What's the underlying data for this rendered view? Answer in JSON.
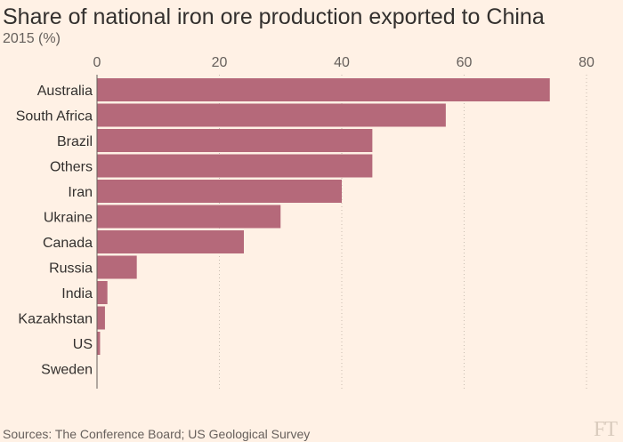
{
  "chart_data": {
    "type": "bar",
    "orientation": "horizontal",
    "title": "Share of national iron ore production exported to China",
    "subtitle": "2015 (%)",
    "categories": [
      "Australia",
      "South Africa",
      "Brazil",
      "Others",
      "Iran",
      "Ukraine",
      "Canada",
      "Russia",
      "India",
      "Kazakhstan",
      "US",
      "Sweden"
    ],
    "values": [
      74,
      57,
      45,
      45,
      40,
      30,
      24,
      6.5,
      1.7,
      1.3,
      0.5,
      0
    ],
    "xlim": [
      0,
      80
    ],
    "xticks": [
      0,
      20,
      40,
      60,
      80
    ],
    "xaxis_position": "top",
    "grid": "vertical dotted",
    "bar_color": "#b5697a",
    "source": "Sources: The Conference Board; US Geological Survey",
    "logo": "FT"
  }
}
